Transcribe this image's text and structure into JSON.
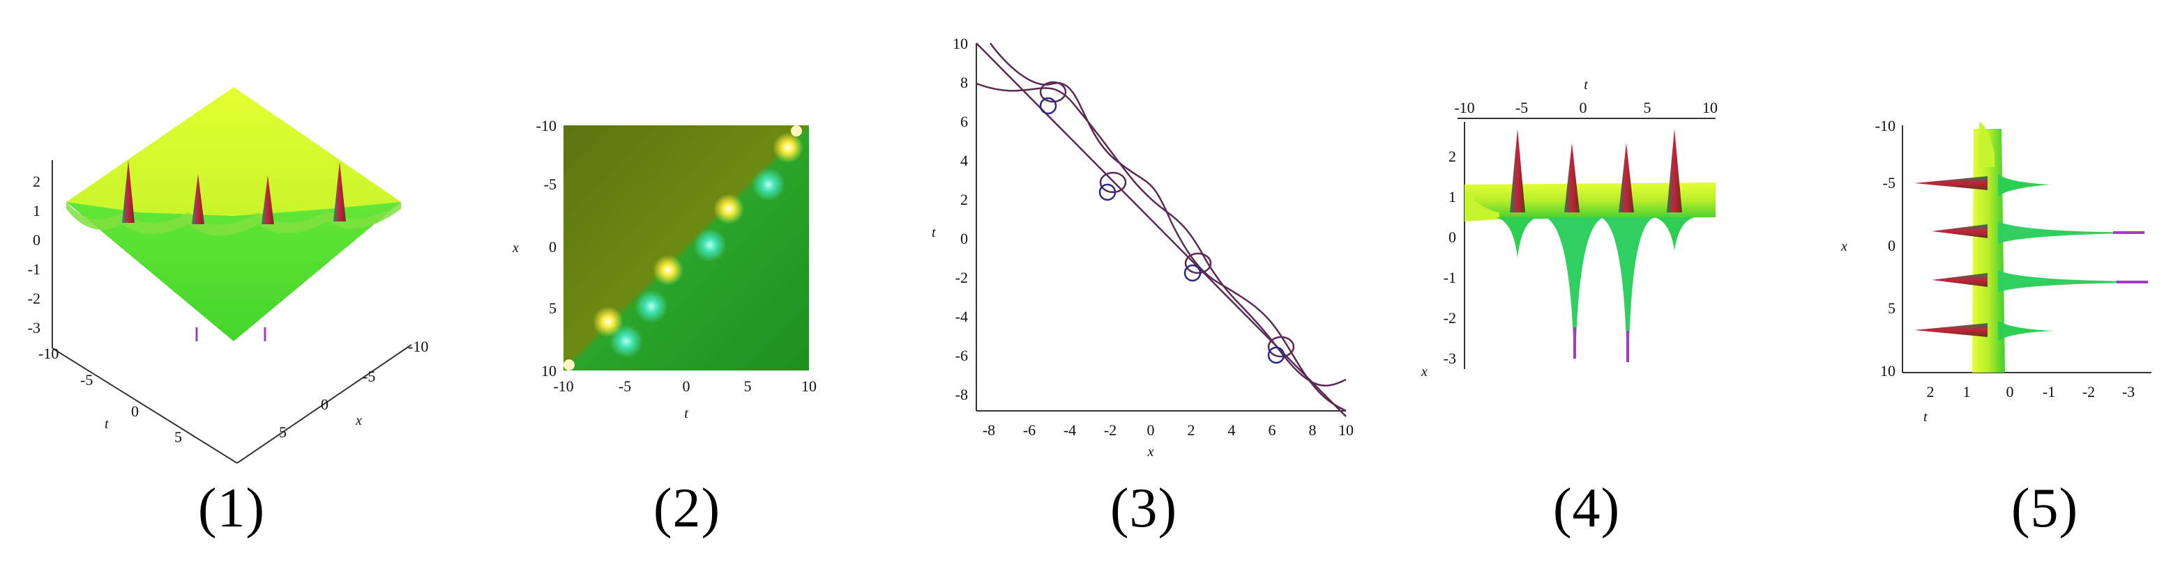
{
  "panels": [
    {
      "caption": "(1)",
      "view": "3d-surface",
      "z_ticks": [
        "2",
        "1",
        "0",
        "-1",
        "-2",
        "-3"
      ],
      "t_ticks": [
        "-10",
        "-5",
        "0",
        "5"
      ],
      "x_ticks": [
        "-10",
        "-5",
        "0",
        "5"
      ],
      "t_label": "t",
      "x_label": "x"
    },
    {
      "caption": "(2)",
      "view": "density",
      "y_ticks": [
        "-10",
        "-5",
        "0",
        "5",
        "10"
      ],
      "x_ticks": [
        "-10",
        "-5",
        "0",
        "5",
        "10"
      ],
      "y_label": "x",
      "x_label": "t"
    },
    {
      "caption": "(3)",
      "view": "contour",
      "y_ticks": [
        "10",
        "8",
        "6",
        "4",
        "2",
        "0",
        "-2",
        "-4",
        "-6",
        "-8"
      ],
      "x_ticks": [
        "-8",
        "-6",
        "-4",
        "-2",
        "0",
        "2",
        "4",
        "6",
        "8",
        "10"
      ],
      "y_label": "t",
      "x_label": "x"
    },
    {
      "caption": "(4)",
      "view": "side-t",
      "top_ticks": [
        "-10",
        "-5",
        "0",
        "5",
        "10"
      ],
      "z_ticks": [
        "2",
        "1",
        "0",
        "-1",
        "-2",
        "-3"
      ],
      "top_label": "t",
      "side_label": "x"
    },
    {
      "caption": "(5)",
      "view": "side-x",
      "left_ticks": [
        "-10",
        "-5",
        "0",
        "5",
        "10"
      ],
      "bottom_ticks": [
        "2",
        "1",
        "0",
        "-1",
        "-2",
        "-3"
      ],
      "left_label": "x",
      "bottom_label": "t"
    }
  ],
  "colors": {
    "surface_high": "#d6ff2a",
    "surface_low": "#4cdb2e",
    "density_dark": "#5f7a10",
    "density_green": "#1f9a1f",
    "peak_red": "#c8203a",
    "cyan": "#3fe3b7",
    "contour": "#5a2a55",
    "contour_blue": "#2a2a88",
    "magenta": "#a03cc8"
  }
}
